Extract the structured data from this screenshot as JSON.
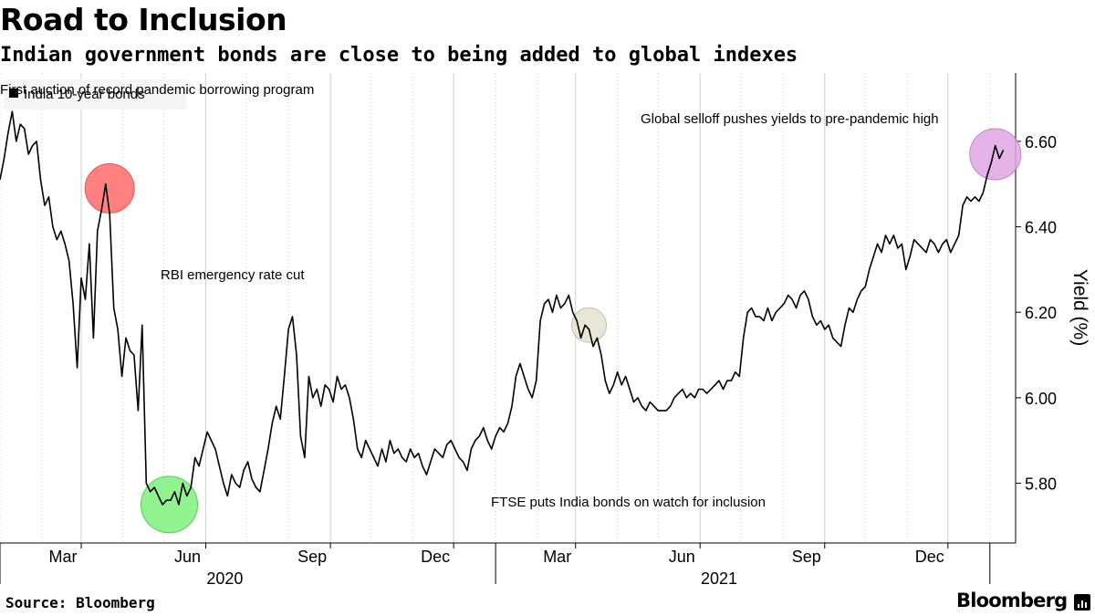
{
  "header": {
    "title": "Road to Inclusion",
    "subtitle": "Indian government bonds are close to being added to global indexes"
  },
  "footer": {
    "source": "Source: Bloomberg",
    "brand": "Bloomberg"
  },
  "colors": {
    "line": "#000000",
    "grid": "#cfcfcf",
    "annotation_red": "#ff6b6b",
    "annotation_green": "#7df27d",
    "annotation_khaki": "#e4e2cf",
    "annotation_violet": "#e0a8e4"
  },
  "chart_data": {
    "type": "line",
    "ylabel": "Yield (%)",
    "ylim": [
      5.66,
      6.76
    ],
    "y_ticks": [
      5.8,
      6.0,
      6.2,
      6.4,
      6.6
    ],
    "y_tick_labels": [
      "5.80",
      "6.00",
      "6.20",
      "6.40",
      "6.60"
    ],
    "y_axis_position": "right",
    "xlim": [
      "2020-01-01",
      "2022-01-20"
    ],
    "x_ticks": [
      {
        "date": "2020-03-01",
        "label": "Mar"
      },
      {
        "date": "2020-06-01",
        "label": "Jun"
      },
      {
        "date": "2020-09-01",
        "label": "Sep"
      },
      {
        "date": "2020-12-01",
        "label": "Dec"
      },
      {
        "date": "2021-03-01",
        "label": "Mar"
      },
      {
        "date": "2021-06-01",
        "label": "Jun"
      },
      {
        "date": "2021-09-01",
        "label": "Sep"
      },
      {
        "date": "2021-12-01",
        "label": "Dec"
      }
    ],
    "year_labels": [
      {
        "date": "2020-06-15",
        "label": "2020"
      },
      {
        "date": "2021-06-15",
        "label": "2021"
      }
    ],
    "grid": "vertical",
    "legend": {
      "position": "top-left",
      "entries": [
        "India 10-year bonds"
      ]
    },
    "series": [
      {
        "name": "India 10-year bonds",
        "points": [
          [
            "2020-01-01",
            6.51
          ],
          [
            "2020-01-04",
            6.56
          ],
          [
            "2020-01-07",
            6.62
          ],
          [
            "2020-01-10",
            6.67
          ],
          [
            "2020-01-13",
            6.6
          ],
          [
            "2020-01-16",
            6.64
          ],
          [
            "2020-01-19",
            6.63
          ],
          [
            "2020-01-22",
            6.57
          ],
          [
            "2020-01-25",
            6.59
          ],
          [
            "2020-01-28",
            6.6
          ],
          [
            "2020-01-31",
            6.51
          ],
          [
            "2020-02-03",
            6.45
          ],
          [
            "2020-02-06",
            6.47
          ],
          [
            "2020-02-09",
            6.4
          ],
          [
            "2020-02-12",
            6.37
          ],
          [
            "2020-02-15",
            6.39
          ],
          [
            "2020-02-18",
            6.36
          ],
          [
            "2020-02-21",
            6.32
          ],
          [
            "2020-02-24",
            6.22
          ],
          [
            "2020-02-27",
            6.07
          ],
          [
            "2020-03-01",
            6.28
          ],
          [
            "2020-03-04",
            6.23
          ],
          [
            "2020-03-07",
            6.36
          ],
          [
            "2020-03-10",
            6.14
          ],
          [
            "2020-03-13",
            6.39
          ],
          [
            "2020-03-16",
            6.44
          ],
          [
            "2020-03-19",
            6.5
          ],
          [
            "2020-03-22",
            6.43
          ],
          [
            "2020-03-25",
            6.21
          ],
          [
            "2020-03-28",
            6.16
          ],
          [
            "2020-03-31",
            6.05
          ],
          [
            "2020-04-03",
            6.14
          ],
          [
            "2020-04-06",
            6.11
          ],
          [
            "2020-04-09",
            6.1
          ],
          [
            "2020-04-12",
            5.97
          ],
          [
            "2020-04-15",
            6.17
          ],
          [
            "2020-04-18",
            5.8
          ],
          [
            "2020-04-21",
            5.78
          ],
          [
            "2020-04-24",
            5.79
          ],
          [
            "2020-04-27",
            5.77
          ],
          [
            "2020-04-30",
            5.75
          ],
          [
            "2020-05-03",
            5.76
          ],
          [
            "2020-05-06",
            5.76
          ],
          [
            "2020-05-09",
            5.78
          ],
          [
            "2020-05-12",
            5.75
          ],
          [
            "2020-05-15",
            5.8
          ],
          [
            "2020-05-18",
            5.77
          ],
          [
            "2020-05-21",
            5.79
          ],
          [
            "2020-05-24",
            5.86
          ],
          [
            "2020-05-27",
            5.84
          ],
          [
            "2020-05-30",
            5.88
          ],
          [
            "2020-06-02",
            5.92
          ],
          [
            "2020-06-05",
            5.9
          ],
          [
            "2020-06-08",
            5.88
          ],
          [
            "2020-06-11",
            5.84
          ],
          [
            "2020-06-14",
            5.8
          ],
          [
            "2020-06-17",
            5.77
          ],
          [
            "2020-06-20",
            5.82
          ],
          [
            "2020-06-23",
            5.8
          ],
          [
            "2020-06-26",
            5.79
          ],
          [
            "2020-06-29",
            5.83
          ],
          [
            "2020-07-02",
            5.85
          ],
          [
            "2020-07-05",
            5.81
          ],
          [
            "2020-07-08",
            5.79
          ],
          [
            "2020-07-11",
            5.78
          ],
          [
            "2020-07-14",
            5.83
          ],
          [
            "2020-07-17",
            5.88
          ],
          [
            "2020-07-20",
            5.94
          ],
          [
            "2020-07-23",
            5.98
          ],
          [
            "2020-07-26",
            5.95
          ],
          [
            "2020-07-29",
            6.05
          ],
          [
            "2020-08-01",
            6.16
          ],
          [
            "2020-08-04",
            6.19
          ],
          [
            "2020-08-07",
            6.1
          ],
          [
            "2020-08-10",
            5.91
          ],
          [
            "2020-08-13",
            5.86
          ],
          [
            "2020-08-16",
            6.05
          ],
          [
            "2020-08-19",
            6.0
          ],
          [
            "2020-08-22",
            6.02
          ],
          [
            "2020-08-25",
            5.98
          ],
          [
            "2020-08-28",
            6.03
          ],
          [
            "2020-08-31",
            6.02
          ],
          [
            "2020-09-03",
            5.99
          ],
          [
            "2020-09-06",
            6.05
          ],
          [
            "2020-09-09",
            6.02
          ],
          [
            "2020-09-12",
            6.03
          ],
          [
            "2020-09-15",
            6.0
          ],
          [
            "2020-09-18",
            5.95
          ],
          [
            "2020-09-21",
            5.88
          ],
          [
            "2020-09-24",
            5.86
          ],
          [
            "2020-09-27",
            5.9
          ],
          [
            "2020-09-30",
            5.88
          ],
          [
            "2020-10-03",
            5.86
          ],
          [
            "2020-10-06",
            5.84
          ],
          [
            "2020-10-09",
            5.88
          ],
          [
            "2020-10-12",
            5.85
          ],
          [
            "2020-10-15",
            5.9
          ],
          [
            "2020-10-18",
            5.87
          ],
          [
            "2020-10-21",
            5.88
          ],
          [
            "2020-10-24",
            5.86
          ],
          [
            "2020-10-27",
            5.85
          ],
          [
            "2020-10-30",
            5.88
          ],
          [
            "2020-11-02",
            5.86
          ],
          [
            "2020-11-05",
            5.87
          ],
          [
            "2020-11-08",
            5.84
          ],
          [
            "2020-11-11",
            5.82
          ],
          [
            "2020-11-14",
            5.85
          ],
          [
            "2020-11-17",
            5.88
          ],
          [
            "2020-11-20",
            5.87
          ],
          [
            "2020-11-23",
            5.86
          ],
          [
            "2020-11-26",
            5.89
          ],
          [
            "2020-11-29",
            5.9
          ],
          [
            "2020-12-02",
            5.88
          ],
          [
            "2020-12-05",
            5.86
          ],
          [
            "2020-12-08",
            5.85
          ],
          [
            "2020-12-11",
            5.83
          ],
          [
            "2020-12-14",
            5.88
          ],
          [
            "2020-12-17",
            5.9
          ],
          [
            "2020-12-20",
            5.91
          ],
          [
            "2020-12-23",
            5.93
          ],
          [
            "2020-12-26",
            5.9
          ],
          [
            "2020-12-29",
            5.88
          ],
          [
            "2021-01-01",
            5.91
          ],
          [
            "2021-01-04",
            5.93
          ],
          [
            "2021-01-07",
            5.92
          ],
          [
            "2021-01-10",
            5.94
          ],
          [
            "2021-01-13",
            5.98
          ],
          [
            "2021-01-16",
            6.05
          ],
          [
            "2021-01-19",
            6.08
          ],
          [
            "2021-01-22",
            6.05
          ],
          [
            "2021-01-25",
            6.02
          ],
          [
            "2021-01-28",
            6.0
          ],
          [
            "2021-01-31",
            6.04
          ],
          [
            "2021-02-03",
            6.18
          ],
          [
            "2021-02-06",
            6.22
          ],
          [
            "2021-02-09",
            6.23
          ],
          [
            "2021-02-12",
            6.2
          ],
          [
            "2021-02-15",
            6.24
          ],
          [
            "2021-02-18",
            6.21
          ],
          [
            "2021-02-21",
            6.22
          ],
          [
            "2021-02-24",
            6.24
          ],
          [
            "2021-02-27",
            6.2
          ],
          [
            "2021-03-02",
            6.18
          ],
          [
            "2021-03-05",
            6.14
          ],
          [
            "2021-03-08",
            6.17
          ],
          [
            "2021-03-11",
            6.16
          ],
          [
            "2021-03-14",
            6.12
          ],
          [
            "2021-03-17",
            6.14
          ],
          [
            "2021-03-20",
            6.1
          ],
          [
            "2021-03-23",
            6.04
          ],
          [
            "2021-03-26",
            6.01
          ],
          [
            "2021-03-29",
            6.03
          ],
          [
            "2021-04-01",
            6.06
          ],
          [
            "2021-04-04",
            6.03
          ],
          [
            "2021-04-07",
            6.05
          ],
          [
            "2021-04-10",
            6.02
          ],
          [
            "2021-04-13",
            5.99
          ],
          [
            "2021-04-16",
            6.0
          ],
          [
            "2021-04-19",
            5.98
          ],
          [
            "2021-04-22",
            5.97
          ],
          [
            "2021-04-25",
            5.99
          ],
          [
            "2021-04-28",
            5.98
          ],
          [
            "2021-05-01",
            5.97
          ],
          [
            "2021-05-04",
            5.97
          ],
          [
            "2021-05-07",
            5.97
          ],
          [
            "2021-05-10",
            5.98
          ],
          [
            "2021-05-13",
            6.0
          ],
          [
            "2021-05-16",
            6.01
          ],
          [
            "2021-05-19",
            6.02
          ],
          [
            "2021-05-22",
            6.0
          ],
          [
            "2021-05-25",
            6.01
          ],
          [
            "2021-05-28",
            6.0
          ],
          [
            "2021-05-31",
            6.02
          ],
          [
            "2021-06-03",
            6.02
          ],
          [
            "2021-06-06",
            6.01
          ],
          [
            "2021-06-09",
            6.02
          ],
          [
            "2021-06-12",
            6.03
          ],
          [
            "2021-06-15",
            6.04
          ],
          [
            "2021-06-18",
            6.02
          ],
          [
            "2021-06-21",
            6.04
          ],
          [
            "2021-06-24",
            6.04
          ],
          [
            "2021-06-27",
            6.06
          ],
          [
            "2021-06-30",
            6.05
          ],
          [
            "2021-07-03",
            6.14
          ],
          [
            "2021-07-06",
            6.2
          ],
          [
            "2021-07-09",
            6.21
          ],
          [
            "2021-07-12",
            6.19
          ],
          [
            "2021-07-15",
            6.19
          ],
          [
            "2021-07-18",
            6.18
          ],
          [
            "2021-07-21",
            6.21
          ],
          [
            "2021-07-24",
            6.18
          ],
          [
            "2021-07-27",
            6.2
          ],
          [
            "2021-07-30",
            6.21
          ],
          [
            "2021-08-02",
            6.22
          ],
          [
            "2021-08-05",
            6.24
          ],
          [
            "2021-08-08",
            6.23
          ],
          [
            "2021-08-11",
            6.21
          ],
          [
            "2021-08-14",
            6.24
          ],
          [
            "2021-08-17",
            6.25
          ],
          [
            "2021-08-20",
            6.23
          ],
          [
            "2021-08-23",
            6.19
          ],
          [
            "2021-08-26",
            6.17
          ],
          [
            "2021-08-29",
            6.18
          ],
          [
            "2021-09-01",
            6.16
          ],
          [
            "2021-09-04",
            6.17
          ],
          [
            "2021-09-07",
            6.14
          ],
          [
            "2021-09-10",
            6.13
          ],
          [
            "2021-09-13",
            6.12
          ],
          [
            "2021-09-16",
            6.17
          ],
          [
            "2021-09-19",
            6.21
          ],
          [
            "2021-09-22",
            6.2
          ],
          [
            "2021-09-25",
            6.23
          ],
          [
            "2021-09-28",
            6.25
          ],
          [
            "2021-10-01",
            6.26
          ],
          [
            "2021-10-04",
            6.3
          ],
          [
            "2021-10-07",
            6.33
          ],
          [
            "2021-10-10",
            6.36
          ],
          [
            "2021-10-13",
            6.34
          ],
          [
            "2021-10-16",
            6.38
          ],
          [
            "2021-10-19",
            6.36
          ],
          [
            "2021-10-22",
            6.38
          ],
          [
            "2021-10-25",
            6.35
          ],
          [
            "2021-10-28",
            6.36
          ],
          [
            "2021-10-31",
            6.3
          ],
          [
            "2021-11-03",
            6.33
          ],
          [
            "2021-11-06",
            6.37
          ],
          [
            "2021-11-09",
            6.36
          ],
          [
            "2021-11-12",
            6.35
          ],
          [
            "2021-11-15",
            6.34
          ],
          [
            "2021-11-18",
            6.37
          ],
          [
            "2021-11-21",
            6.36
          ],
          [
            "2021-11-24",
            6.34
          ],
          [
            "2021-11-27",
            6.36
          ],
          [
            "2021-11-30",
            6.37
          ],
          [
            "2021-12-03",
            6.34
          ],
          [
            "2021-12-06",
            6.36
          ],
          [
            "2021-12-09",
            6.38
          ],
          [
            "2021-12-12",
            6.45
          ],
          [
            "2021-12-15",
            6.47
          ],
          [
            "2021-12-18",
            6.46
          ],
          [
            "2021-12-21",
            6.47
          ],
          [
            "2021-12-24",
            6.46
          ],
          [
            "2021-12-27",
            6.48
          ],
          [
            "2021-12-30",
            6.52
          ],
          [
            "2022-01-02",
            6.55
          ],
          [
            "2022-01-05",
            6.59
          ],
          [
            "2022-01-08",
            6.56
          ],
          [
            "2022-01-11",
            6.58
          ]
        ]
      }
    ],
    "annotations": [
      {
        "text": "First auction of record pandemic borrowing program",
        "date": "2020-03-22",
        "value": 6.49,
        "color": "red"
      },
      {
        "text": "RBI emergency rate cut",
        "date": "2020-05-05",
        "value": 5.75,
        "color": "green"
      },
      {
        "text": "FTSE puts India bonds on watch for inclusion",
        "date": "2021-03-11",
        "value": 6.17,
        "color": "khaki"
      },
      {
        "text": "Global selloff pushes yields to pre-pandemic high",
        "date": "2022-01-05",
        "value": 6.57,
        "color": "violet"
      }
    ]
  }
}
